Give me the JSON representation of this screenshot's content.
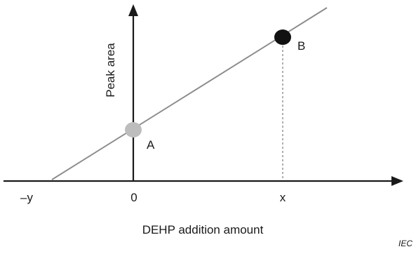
{
  "figure": {
    "y_axis_label": "Peak area",
    "x_axis_label": "DEHP addition amount",
    "tick_neg_y": "–y",
    "tick_zero": "0",
    "tick_x": "x",
    "point_a_label": "A",
    "point_b_label": "B",
    "credit": "IEC"
  },
  "colors": {
    "axis": "#1a1a1a",
    "line": "#8c8c8c",
    "point_a": "#bdbdbd",
    "point_b": "#111111",
    "dashed": "#7a7a7a"
  }
}
